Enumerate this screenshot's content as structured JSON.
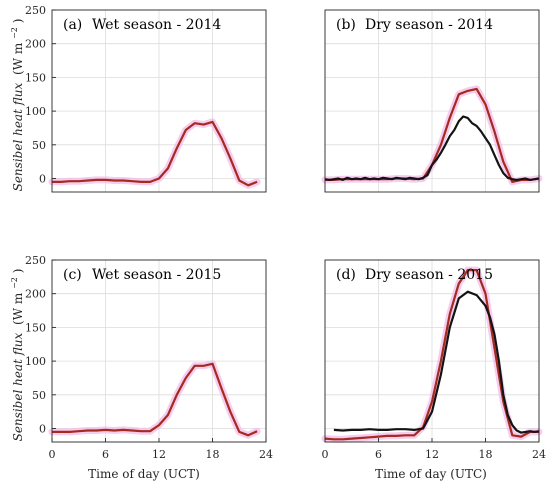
{
  "figure": {
    "ylabel_text": "Sensibel heat flux",
    "ylabel_units": "(W m",
    "ylabel_exp": "−2",
    "ylabel_close": ")",
    "xlabel_left": "Time of day (UCT)",
    "xlabel_right": "Time of day (UTC)"
  },
  "chart_data": [
    {
      "type": "line",
      "label": "(a)",
      "title": "Wet season - 2014",
      "xlim": [
        0,
        24
      ],
      "ylim": [
        -20,
        250
      ],
      "xticks": [],
      "yticks": [
        0,
        50,
        100,
        150,
        200,
        250
      ],
      "series": [
        {
          "color": "#a52a1f",
          "x": [
            0,
            1,
            2,
            3,
            4,
            5,
            6,
            7,
            8,
            9,
            10,
            11,
            12,
            13,
            14,
            15,
            16,
            17,
            18,
            19,
            20,
            21,
            22,
            23
          ],
          "y": [
            -5,
            -5,
            -4,
            -4,
            -3,
            -2,
            -2,
            -3,
            -3,
            -4,
            -5,
            -5,
            0,
            15,
            45,
            72,
            82,
            80,
            84,
            60,
            30,
            -3,
            -10,
            -5
          ]
        }
      ]
    },
    {
      "type": "line",
      "label": "(b)",
      "title": "Dry season - 2014",
      "xlim": [
        0,
        24
      ],
      "ylim": [
        -20,
        250
      ],
      "xticks": [],
      "yticks": [],
      "series": [
        {
          "color": "#a52a1f",
          "x": [
            0,
            1,
            2,
            3,
            4,
            5,
            6,
            7,
            8,
            9,
            10,
            11,
            12,
            13,
            14,
            15,
            16,
            17,
            18,
            19,
            20,
            21,
            22,
            23,
            24
          ],
          "y": [
            -2,
            -2,
            -1,
            -1,
            -1,
            -1,
            -1,
            -1,
            0,
            0,
            -1,
            0,
            20,
            50,
            90,
            125,
            130,
            133,
            110,
            70,
            25,
            -5,
            -2,
            -2,
            0
          ]
        },
        {
          "color": "#141414",
          "x": [
            0,
            0.5,
            1,
            1.5,
            2,
            2.5,
            3,
            3.5,
            4,
            4.5,
            5,
            5.5,
            6,
            6.5,
            7,
            7.5,
            8,
            8.5,
            9,
            9.5,
            10,
            10.5,
            11,
            11.5,
            12,
            12.5,
            13,
            13.5,
            14,
            14.5,
            15,
            15.5,
            16,
            16.5,
            17,
            17.5,
            18,
            18.5,
            19,
            19.5,
            20,
            20.5,
            21,
            21.5,
            22,
            22.5,
            23,
            23.5,
            24
          ],
          "y": [
            -1,
            -2,
            -1,
            0,
            -2,
            1,
            -1,
            0,
            -1,
            1,
            -1,
            0,
            -1,
            1,
            0,
            -1,
            1,
            0,
            -1,
            1,
            0,
            -1,
            1,
            5,
            20,
            28,
            38,
            50,
            63,
            72,
            85,
            92,
            90,
            82,
            78,
            70,
            60,
            50,
            35,
            20,
            8,
            1,
            -1,
            -2,
            -1,
            0,
            -2,
            -1,
            0
          ]
        }
      ]
    },
    {
      "type": "line",
      "label": "(c)",
      "title": "Wet season - 2015",
      "xlim": [
        0,
        24
      ],
      "ylim": [
        -20,
        250
      ],
      "xticks": [
        0,
        6,
        12,
        18,
        24
      ],
      "yticks": [
        0,
        50,
        100,
        150,
        200,
        250
      ],
      "series": [
        {
          "color": "#a52a1f",
          "x": [
            0,
            1,
            2,
            3,
            4,
            5,
            6,
            7,
            8,
            9,
            10,
            11,
            12,
            13,
            14,
            15,
            16,
            17,
            18,
            19,
            20,
            21,
            22,
            23
          ],
          "y": [
            -5,
            -5,
            -5,
            -4,
            -3,
            -3,
            -2,
            -3,
            -2,
            -3,
            -4,
            -4,
            5,
            20,
            50,
            75,
            93,
            93,
            96,
            60,
            25,
            -5,
            -10,
            -4
          ]
        }
      ]
    },
    {
      "type": "line",
      "label": "(d)",
      "title": "Dry season - 2015",
      "xlim": [
        0,
        24
      ],
      "ylim": [
        -20,
        250
      ],
      "xticks": [
        0,
        6,
        12,
        18,
        24
      ],
      "yticks": [],
      "series": [
        {
          "color": "#a52a1f",
          "x": [
            0,
            1,
            2,
            3,
            4,
            5,
            6,
            7,
            8,
            9,
            10,
            11,
            12,
            13,
            14,
            15,
            16,
            17,
            18,
            19,
            20,
            21,
            22,
            23,
            24
          ],
          "y": [
            -15,
            -16,
            -16,
            -15,
            -14,
            -13,
            -12,
            -11,
            -11,
            -10,
            -10,
            2,
            40,
            100,
            170,
            215,
            235,
            235,
            200,
            120,
            40,
            -10,
            -12,
            -5,
            -5
          ]
        },
        {
          "color": "#141414",
          "x": [
            1,
            2,
            3,
            4,
            5,
            6,
            7,
            8,
            9,
            10,
            10.5,
            11,
            12,
            13,
            14,
            15,
            16,
            17,
            18,
            18.5,
            19,
            19.5,
            20,
            20.5,
            21,
            21.5,
            22,
            22.5,
            23,
            23.5,
            24
          ],
          "y": [
            -2,
            -3,
            -2,
            -2,
            -1,
            -2,
            -2,
            -1,
            -1,
            -2,
            -1,
            0,
            25,
            80,
            150,
            193,
            203,
            198,
            182,
            165,
            140,
            100,
            50,
            20,
            5,
            -3,
            -6,
            -5,
            -4,
            -5,
            -4
          ]
        }
      ]
    }
  ]
}
